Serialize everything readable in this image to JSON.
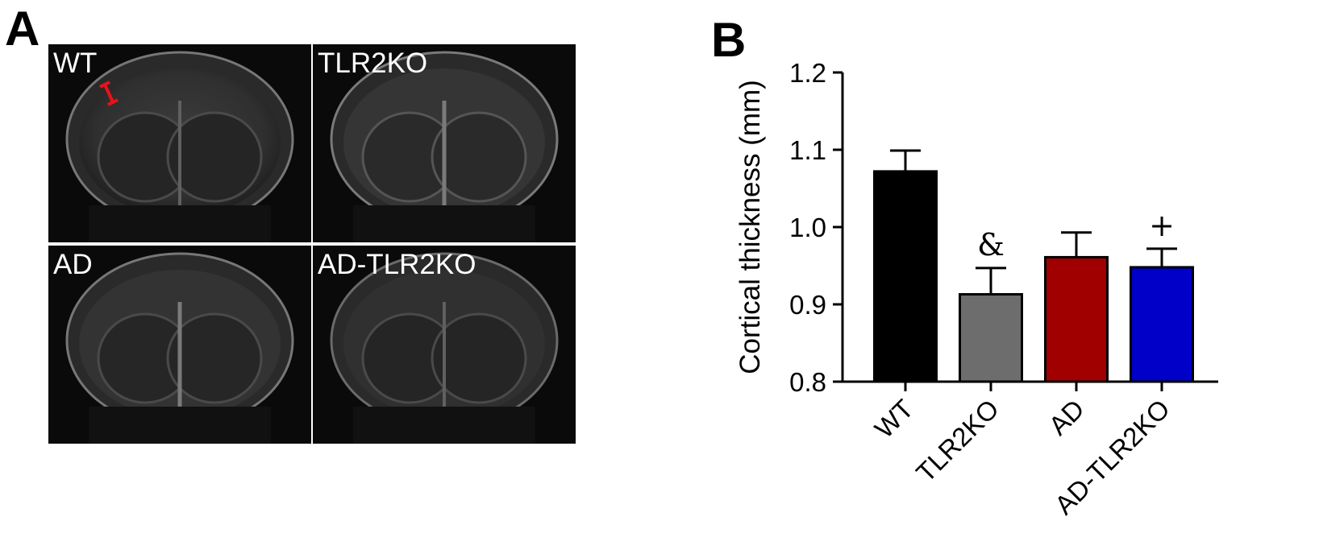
{
  "panels": {
    "a_letter": "A",
    "b_letter": "B"
  },
  "mri_panels": [
    {
      "label": "WT",
      "annotation": "cortical-thickness-scale-bar",
      "annotation_color": "#e8121b"
    },
    {
      "label": "TLR2KO"
    },
    {
      "label": "AD"
    },
    {
      "label": "AD-TLR2KO"
    }
  ],
  "chart_data": {
    "type": "bar",
    "title": "",
    "xlabel": "",
    "ylabel": "Cortical thickness (mm)",
    "ylim": [
      0.8,
      1.2
    ],
    "yticks": [
      0.8,
      0.9,
      1.0,
      1.1,
      1.2
    ],
    "ytick_labels": [
      "0.8",
      "0.9",
      "1.0",
      "1.1",
      "1.2"
    ],
    "categories": [
      "WT",
      "TLR2KO",
      "AD",
      "AD-TLR2KO"
    ],
    "values": [
      1.072,
      0.913,
      0.961,
      0.948
    ],
    "errors": [
      0.027,
      0.034,
      0.032,
      0.024
    ],
    "colors": [
      "#000000",
      "#6d6d6d",
      "#a00000",
      "#0000c8"
    ],
    "annotations": [
      "",
      "&",
      "",
      "+"
    ],
    "grid": false,
    "legend": "none"
  }
}
